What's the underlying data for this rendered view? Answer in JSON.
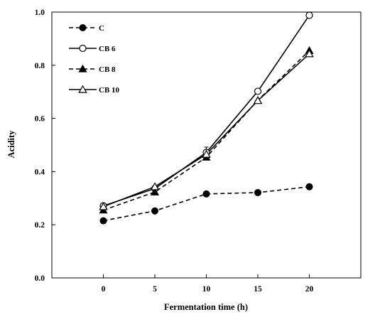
{
  "chart_data": {
    "type": "line",
    "xlabel": "Fermentation time (h)",
    "ylabel": "Acidity",
    "xlim": [
      -5,
      25
    ],
    "ylim": [
      0,
      1.0
    ],
    "x": [
      0,
      5,
      10,
      15,
      20
    ],
    "xticks": [
      0,
      5,
      10,
      15,
      20
    ],
    "yticks": [
      0.0,
      0.2,
      0.4,
      0.6,
      0.8,
      1.0
    ],
    "ytick_labels": [
      "0.0",
      "0.2",
      "0.4",
      "0.6",
      "0.8",
      "1.0"
    ],
    "grid": false,
    "legend_position": "top-left",
    "series": [
      {
        "name": "C",
        "values": [
          0.215,
          0.252,
          0.316,
          0.321,
          0.343
        ],
        "line": "dashed",
        "marker": "filled-circle",
        "color": "#000000"
      },
      {
        "name": "CB 6",
        "values": [
          0.271,
          0.336,
          0.472,
          0.702,
          0.988
        ],
        "line": "solid",
        "marker": "open-circle",
        "color": "#000000"
      },
      {
        "name": "CB 8",
        "values": [
          0.255,
          0.323,
          0.454,
          0.668,
          0.855
        ],
        "line": "dashed",
        "marker": "filled-triangle",
        "color": "#000000"
      },
      {
        "name": "CB 10",
        "values": [
          0.268,
          0.343,
          0.465,
          0.667,
          0.843
        ],
        "line": "solid",
        "marker": "open-triangle",
        "color": "#000000"
      }
    ],
    "error_bars": [
      {
        "series": "CB 6",
        "x": 10,
        "y": 0.472,
        "err": 0.02
      }
    ]
  }
}
